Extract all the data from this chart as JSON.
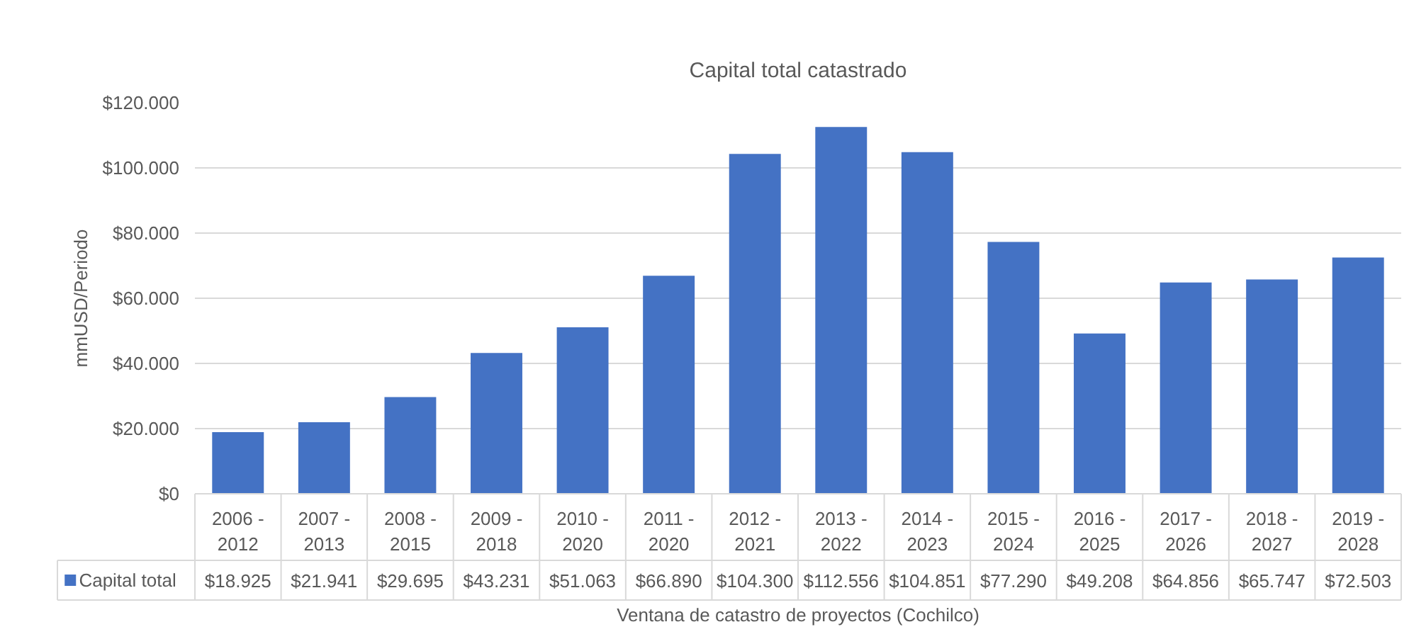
{
  "chart_data": {
    "type": "bar",
    "title": "Capital total catastrado",
    "xlabel": "Ventana de catastro de proyectos (Cochilco)",
    "ylabel": "mmUSD/Periodo",
    "categories": [
      "2006 - 2012",
      "2007 - 2013",
      "2008 - 2015",
      "2009 - 2018",
      "2010 - 2020",
      "2011 - 2020",
      "2012 - 2021",
      "2013 - 2022",
      "2014 - 2023",
      "2015 - 2024",
      "2016 - 2025",
      "2017 - 2026",
      "2018 - 2027",
      "2019 - 2028"
    ],
    "series": [
      {
        "name": "Capital total",
        "color": "#4472c4",
        "values": [
          18925,
          21941,
          29695,
          43231,
          51063,
          66890,
          104300,
          112556,
          104851,
          77290,
          49208,
          64856,
          65747,
          72503
        ],
        "value_labels": [
          "$18.925",
          "$21.941",
          "$29.695",
          "$43.231",
          "$51.063",
          "$66.890",
          "$104.300",
          "$112.556",
          "$104.851",
          "$77.290",
          "$49.208",
          "$64.856",
          "$65.747",
          "$72.503"
        ]
      }
    ],
    "ylim": [
      0,
      120000
    ],
    "yticks": [
      {
        "value": 0,
        "label": "$0"
      },
      {
        "value": 20000,
        "label": "$20.000"
      },
      {
        "value": 40000,
        "label": "$40.000"
      },
      {
        "value": 60000,
        "label": "$60.000"
      },
      {
        "value": 80000,
        "label": "$80.000"
      },
      {
        "value": 100000,
        "label": "$100.000"
      },
      {
        "value": 120000,
        "label": "$120.000"
      }
    ],
    "grid": "y",
    "legend": "bottom"
  }
}
